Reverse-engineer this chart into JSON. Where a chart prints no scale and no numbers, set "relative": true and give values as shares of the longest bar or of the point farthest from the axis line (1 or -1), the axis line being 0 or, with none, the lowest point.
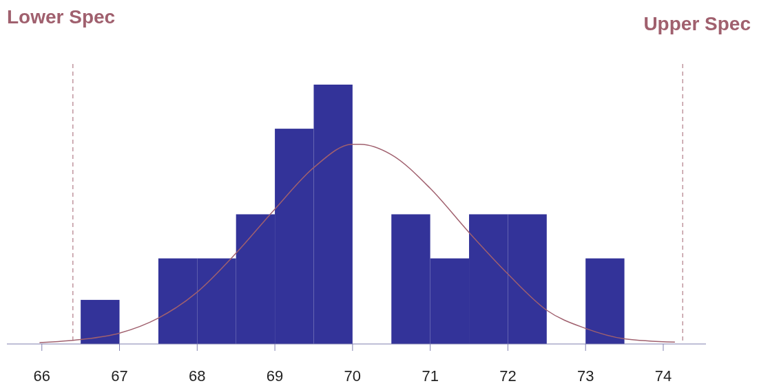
{
  "chart_data": {
    "type": "histogram",
    "relative": true,
    "xlim": [
      65.55,
      74.55
    ],
    "xticks": [
      66,
      67,
      68,
      69,
      70,
      71,
      72,
      73,
      74
    ],
    "bins": [
      66.5,
      67,
      67.5,
      68,
      68.5,
      69,
      69.5,
      70,
      70.5,
      71,
      71.5,
      72,
      72.5,
      73,
      73.5
    ],
    "values": [
      0.17,
      0,
      0.33,
      0.33,
      0.5,
      0.83,
      1,
      0,
      0.5,
      0.33,
      0.5,
      0.5,
      0,
      0.33
    ],
    "color": "#333399",
    "series": [
      {
        "type": "line",
        "color": "#a0606e",
        "x": [
          65.97,
          66.5,
          67,
          67.5,
          68,
          68.5,
          69,
          69.5,
          70,
          70.1,
          70.5,
          71,
          71.5,
          72,
          72.5,
          73,
          73.5,
          74.15
        ],
        "values": [
          0.005,
          0.017,
          0.042,
          0.1,
          0.2,
          0.35,
          0.52,
          0.68,
          0.77,
          0.77,
          0.73,
          0.6,
          0.43,
          0.27,
          0.13,
          0.06,
          0.02,
          0.007
        ]
      }
    ],
    "ref_lines": [
      {
        "axis": "x",
        "value": 66.4,
        "label": "Lower Spec",
        "color": "#a0606e",
        "line_style": "dashed"
      },
      {
        "axis": "x",
        "value": 74.25,
        "label": "Upper Spec",
        "color": "#a0606e",
        "line_style": "dashed"
      }
    ]
  }
}
